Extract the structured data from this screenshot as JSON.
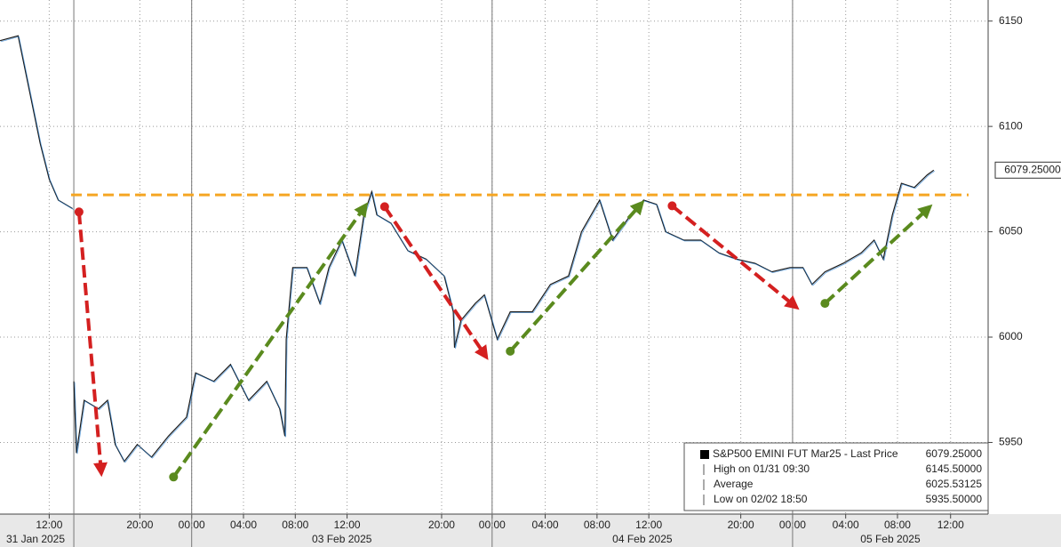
{
  "chart_data": {
    "type": "line",
    "series": [
      {
        "name": "S&P500 EMINI FUT Mar25 - Last Price",
        "color": "#1a1a1a",
        "x": [
          -3.8,
          -2.4,
          -2.1,
          -1.4,
          -0.7,
          0,
          0.7,
          1.8,
          1.85,
          1.9,
          2.1,
          2.7,
          3.8,
          4.5,
          5.1,
          5.8,
          6.8,
          7.9,
          9.2,
          10.6,
          11.3,
          12.7,
          14.0,
          15.4,
          16.8,
          17.8,
          18.2,
          18.3,
          18.8,
          19.9,
          20.9,
          21.6,
          22.6,
          23.6,
          24.3,
          24.9,
          25.3,
          26.4,
          27.7,
          29.1,
          30.5,
          31.2,
          31.3,
          31.8,
          32.9,
          33.6,
          34.6,
          35.6,
          37.3,
          38.7,
          40.1,
          41.1,
          42.5,
          43.5,
          44.9,
          45.9,
          46.9,
          47.6,
          49.0,
          50.3,
          51.7,
          53.1,
          54.5,
          55.8,
          57.2,
          58.2,
          58.9,
          59.9,
          61.3,
          62.7,
          63.7,
          64.4,
          65.1,
          65.8,
          66.8,
          67.8,
          68.3
        ],
        "values": [
          6140.7,
          6143,
          6134,
          6113,
          6092,
          6075,
          6065,
          6061,
          null,
          5979,
          5945,
          5970,
          5966,
          5970,
          5949,
          5941,
          5949,
          5943,
          5953,
          5962,
          5983,
          5979,
          5987,
          5970,
          5979,
          5966,
          5953,
          5999,
          6033,
          6033,
          6016,
          6033,
          6046,
          6029,
          6058,
          6069,
          6058,
          6054,
          6041,
          6037,
          6029,
          6012,
          5995,
          6008,
          6016,
          6020,
          5999,
          6012,
          6012,
          6025,
          6029,
          6050,
          6065,
          6046,
          6058,
          6065,
          6063,
          6050,
          6046,
          6046,
          6040,
          6037,
          6035,
          6031,
          6033,
          6033,
          6025,
          6031,
          6035,
          6040,
          6046,
          6037,
          6058,
          6073,
          6071,
          6077,
          6079.25
        ]
      }
    ],
    "last_price_label": "6079.25000",
    "resistance": 6067.5,
    "ylim": [
      5916,
      6160
    ],
    "yticks": [
      5950,
      6000,
      6050,
      6100,
      6150
    ],
    "xlim": [
      -3.8,
      72.5
    ],
    "xticks": [
      {
        "value": 0,
        "label": "12:00"
      },
      {
        "value": 7,
        "label": "20:00"
      },
      {
        "value": 11,
        "label": "00:00"
      },
      {
        "value": 15,
        "label": "04:00"
      },
      {
        "value": 19,
        "label": "08:00"
      },
      {
        "value": 23,
        "label": "12:00"
      },
      {
        "value": 30.3,
        "label": "20:00"
      },
      {
        "value": 34.2,
        "label": "00:00"
      },
      {
        "value": 38.3,
        "label": "04:00"
      },
      {
        "value": 42.3,
        "label": "08:00"
      },
      {
        "value": 46.3,
        "label": "12:00"
      },
      {
        "value": 53.4,
        "label": "20:00"
      },
      {
        "value": 57.4,
        "label": "00:00"
      },
      {
        "value": 61.5,
        "label": "04:00"
      },
      {
        "value": 65.5,
        "label": "08:00"
      },
      {
        "value": 69.6,
        "label": "12:00"
      }
    ],
    "dates": [
      {
        "value": 1.9,
        "label": "31 Jan 2025"
      },
      {
        "value": 11,
        "label": "03 Feb 2025"
      },
      {
        "value": 34.2,
        "label": "04 Feb 2025"
      },
      {
        "value": 57.4,
        "label": "05 Feb 2025"
      }
    ],
    "arrows": [
      {
        "color": "#d42020",
        "from": [
          2.3,
          6059.4
        ],
        "to": [
          4.0,
          5937.0
        ]
      },
      {
        "color": "#d42020",
        "from": [
          25.9,
          6061.9
        ],
        "to": [
          33.6,
          5991.9
        ]
      },
      {
        "color": "#d42020",
        "from": [
          48.1,
          6062.3
        ],
        "to": [
          57.5,
          6015.1
        ]
      },
      {
        "color": "#5a8a1e",
        "from": [
          9.6,
          5933.6
        ],
        "to": [
          24.3,
          6061.3
        ]
      },
      {
        "color": "#5a8a1e",
        "from": [
          35.6,
          5993.3
        ],
        "to": [
          45.6,
          6062.5
        ]
      },
      {
        "color": "#5a8a1e",
        "from": [
          59.9,
          6016.0
        ],
        "to": [
          67.8,
          6060.7
        ]
      }
    ],
    "legend": [
      {
        "label": "S&P500 EMINI FUT Mar25 - Last Price",
        "value": "6079.25000"
      },
      {
        "label": "High on 01/31 09:30",
        "value": "6145.50000"
      },
      {
        "label": "Average",
        "value": "6025.53125"
      },
      {
        "label": "Low on 02/02 18:50",
        "value": "5935.50000"
      }
    ]
  }
}
